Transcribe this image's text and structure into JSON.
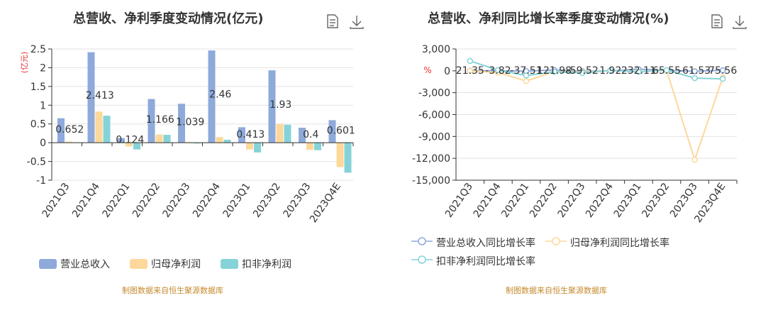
{
  "left": {
    "title": "总营收、净利季度变动情况(亿元)",
    "unit": "(亿元)",
    "source": "制图数据来自恒生聚源数据库",
    "chart_data": {
      "type": "bar",
      "categories": [
        "2021Q3",
        "2021Q4",
        "2022Q1",
        "2022Q2",
        "2022Q3",
        "2022Q4",
        "2023Q1",
        "2023Q2",
        "2023Q3",
        "2023Q4E"
      ],
      "series": [
        {
          "name": "营业总收入",
          "color": "#8eaadb",
          "values": [
            0.652,
            2.413,
            0.124,
            1.166,
            1.039,
            2.46,
            0.413,
            1.93,
            0.4,
            0.601
          ]
        },
        {
          "name": "归母净利润",
          "color": "#fdd89a",
          "values": [
            0.03,
            0.83,
            -0.1,
            0.22,
            0.02,
            0.15,
            -0.18,
            0.5,
            -0.19,
            -0.65
          ]
        },
        {
          "name": "扣非净利润",
          "color": "#85d3d8",
          "values": [
            0.01,
            0.72,
            -0.18,
            0.21,
            -0.02,
            0.08,
            -0.26,
            0.48,
            -0.2,
            -0.8
          ]
        }
      ],
      "data_labels": [
        "0.652",
        "2.413",
        "0.124",
        "1.166",
        "1.039",
        "2.46",
        "0.413",
        "1.93",
        "0.4",
        "0.601"
      ],
      "yticks": [
        "2.5",
        "2",
        "1.5",
        "1",
        "0.5",
        "0",
        "-0.5",
        "-1"
      ],
      "ylim": [
        -1,
        2.5
      ],
      "legend_position": "bottom"
    }
  },
  "right": {
    "title": "总营收、净利同比增长率季度变动情况(%)",
    "unit": "%",
    "source": "制图数据来自恒生聚源数据库",
    "chart_data": {
      "type": "line",
      "categories": [
        "2021Q3",
        "2021Q4",
        "2022Q1",
        "2022Q2",
        "2022Q3",
        "2022Q4",
        "2023Q1",
        "2023Q2",
        "2023Q3",
        "2023Q4E"
      ],
      "series": [
        {
          "name": "营业总收入同比增长率",
          "color": "#8eaadb",
          "values": [
            21.35,
            -3.82,
            -37.51,
            121.98,
            -59.52,
            1.92,
            232.11,
            65.55,
            -61.53,
            75.56
          ]
        },
        {
          "name": "归母净利润同比增长率",
          "color": "#fdd89a",
          "values": [
            1,
            -250,
            -1400,
            -100,
            -200,
            50,
            -100,
            50,
            -12200,
            -900
          ]
        },
        {
          "name": "扣非净利润同比增长率",
          "color": "#85d3d8",
          "values": [
            1350,
            100,
            -650,
            -120,
            -300,
            60,
            -150,
            100,
            -1000,
            -1100
          ]
        }
      ],
      "data_labels": [
        "21.35",
        "-3.82",
        "-37.51",
        "121.98",
        "-59.52",
        "1.92",
        "232.11",
        "65.55",
        "-61.53",
        "75.56"
      ],
      "yticks": [
        "3,000",
        "0",
        "-3,000",
        "-6,000",
        "-9,000",
        "-12,000",
        "-15,000"
      ],
      "ylim": [
        -15000,
        3000
      ],
      "legend_position": "bottom"
    }
  }
}
